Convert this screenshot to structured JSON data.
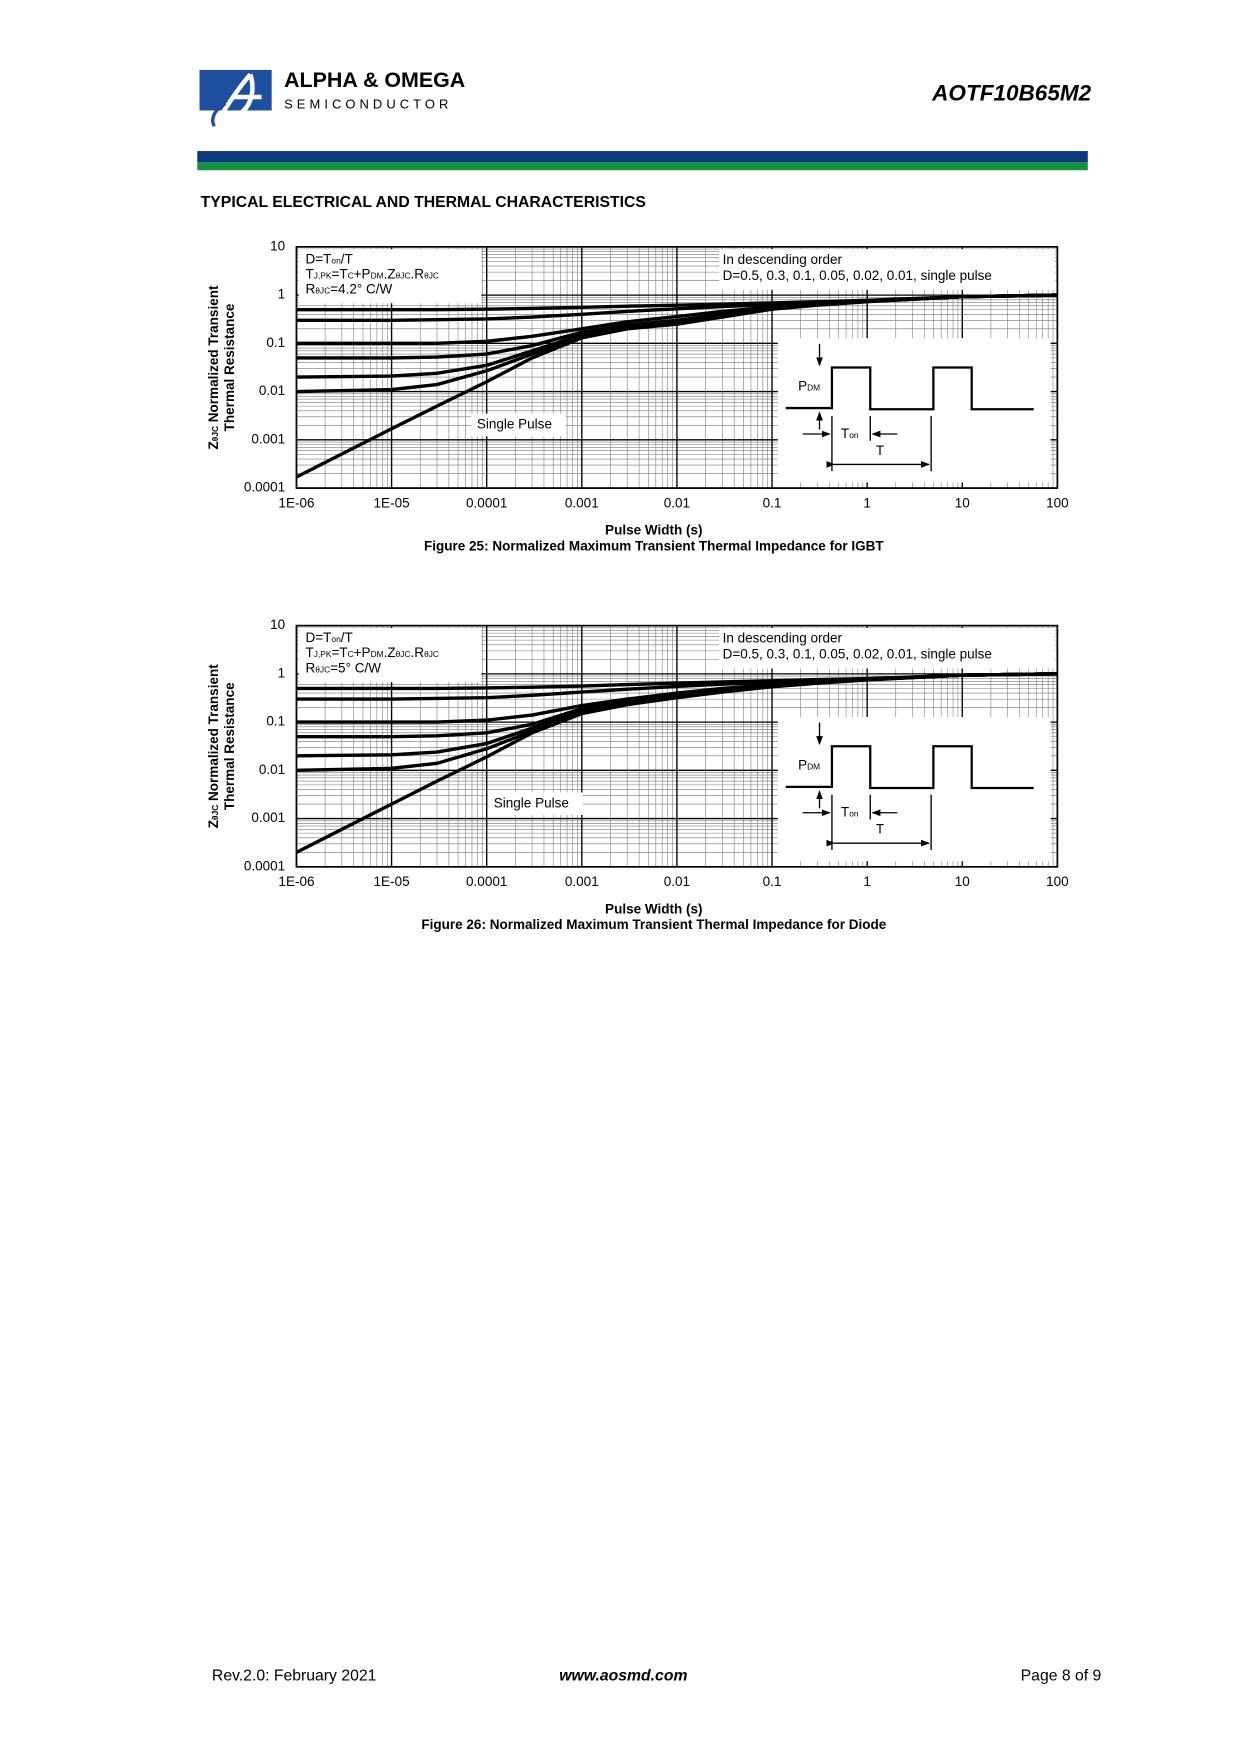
{
  "header": {
    "brand": "ALPHA & OMEGA",
    "brand_sub": "SEMICONDUCTOR",
    "part_number": "AOTF10B65M2"
  },
  "section_title": "TYPICAL ELECTRICAL AND THERMAL CHARACTERISTICS",
  "chart_data": [
    {
      "type": "line",
      "x_label": "Pulse Width (s)",
      "y_label": [
        [
          "Z",
          "θJC",
          " Normalized Transient"
        ],
        [
          "Thermal Resistance"
        ]
      ],
      "caption": "Figure 25: Normalized Maximum Transient Thermal Impedance for IGBT",
      "notes": [
        [
          "D=T",
          "on",
          "/T"
        ],
        [
          "T",
          "J,PK",
          "=T",
          "C",
          "+P",
          "DM",
          ".Z",
          "θJC",
          ".R",
          "θJC"
        ],
        [
          "R",
          "θJC",
          "=4.2°  C/W"
        ]
      ],
      "order_note": [
        "In descending order",
        "D=0.5, 0.3, 0.1, 0.05, 0.02, 0.01, single pulse"
      ],
      "single_pulse_label": "Single Pulse",
      "inset_labels": {
        "pdm": [
          "P",
          "DM"
        ],
        "ton": [
          "T",
          "on"
        ],
        "period": [
          "T"
        ]
      },
      "xscale": "log",
      "yscale": "log",
      "grid": true,
      "minor_grid": true,
      "xlim": [
        1e-06,
        100
      ],
      "ylim": [
        0.0001,
        10
      ],
      "xticks": [
        {
          "value": 1e-06,
          "label": "1E-06"
        },
        {
          "value": 1e-05,
          "label": "1E-05"
        },
        0.0001,
        0.001,
        0.01,
        0.1,
        1,
        10,
        100
      ],
      "yticks": [
        0.0001,
        0.001,
        0.01,
        0.1,
        1,
        10
      ],
      "x": [
        1e-06,
        1e-05,
        3e-05,
        0.0001,
        0.0003,
        0.001,
        0.003,
        0.01,
        0.03,
        0.1,
        0.3,
        1,
        10,
        100
      ],
      "series": [
        {
          "color": "#000000",
          "values": [
            0.5,
            0.5,
            0.5,
            0.51,
            0.53,
            0.56,
            0.59,
            0.62,
            0.65,
            0.69,
            0.73,
            0.78,
            0.93,
            1
          ]
        },
        {
          "color": "#000000",
          "values": [
            0.3,
            0.3,
            0.31,
            0.32,
            0.35,
            0.4,
            0.46,
            0.52,
            0.58,
            0.64,
            0.7,
            0.76,
            0.93,
            1
          ]
        },
        {
          "color": "#000000",
          "values": [
            0.1,
            0.1,
            0.1,
            0.11,
            0.14,
            0.2,
            0.28,
            0.36,
            0.46,
            0.57,
            0.66,
            0.75,
            0.93,
            1
          ]
        },
        {
          "color": "#000000",
          "values": [
            0.05,
            0.05,
            0.052,
            0.06,
            0.09,
            0.17,
            0.24,
            0.3,
            0.4,
            0.54,
            0.64,
            0.74,
            0.93,
            1
          ]
        },
        {
          "color": "#000000",
          "values": [
            0.02,
            0.021,
            0.024,
            0.035,
            0.07,
            0.15,
            0.22,
            0.27,
            0.37,
            0.53,
            0.63,
            0.74,
            0.93,
            1
          ]
        },
        {
          "color": "#000000",
          "values": [
            0.01,
            0.011,
            0.014,
            0.027,
            0.06,
            0.14,
            0.21,
            0.26,
            0.36,
            0.52,
            0.63,
            0.74,
            0.93,
            1
          ]
        },
        {
          "color": "#000000",
          "values": [
            0.00017,
            0.0017,
            0.005,
            0.016,
            0.05,
            0.13,
            0.2,
            0.25,
            0.35,
            0.51,
            0.62,
            0.73,
            0.93,
            1
          ]
        }
      ]
    },
    {
      "type": "line",
      "x_label": "Pulse Width (s)",
      "y_label": [
        [
          "Z",
          "θJC",
          " Normalized Transient"
        ],
        [
          "Thermal Resistance"
        ]
      ],
      "caption": "Figure 26: Normalized Maximum Transient Thermal Impedance for Diode",
      "notes": [
        [
          "D=T",
          "on",
          "/T"
        ],
        [
          "T",
          "J,PK",
          "=T",
          "C",
          "+P",
          "DM",
          ".Z",
          "θJC",
          ".R",
          "θJC"
        ],
        [
          "R",
          "θJC",
          "=5°  C/W"
        ]
      ],
      "order_note": [
        "In descending order",
        "D=0.5, 0.3, 0.1, 0.05, 0.02, 0.01, single pulse"
      ],
      "single_pulse_label": "Single Pulse",
      "inset_labels": {
        "pdm": [
          "P",
          "DM"
        ],
        "ton": [
          "T",
          "on"
        ],
        "period": [
          "T"
        ]
      },
      "xscale": "log",
      "yscale": "log",
      "grid": true,
      "minor_grid": true,
      "xlim": [
        1e-06,
        100
      ],
      "ylim": [
        0.0001,
        10
      ],
      "xticks": [
        {
          "value": 1e-06,
          "label": "1E-06"
        },
        {
          "value": 1e-05,
          "label": "1E-05"
        },
        0.0001,
        0.001,
        0.01,
        0.1,
        1,
        10,
        100
      ],
      "yticks": [
        0.0001,
        0.001,
        0.01,
        0.1,
        1,
        10
      ],
      "x": [
        1e-06,
        1e-05,
        3e-05,
        0.0001,
        0.0003,
        0.001,
        0.003,
        0.01,
        0.03,
        0.1,
        0.3,
        1,
        10,
        100
      ],
      "series": [
        {
          "color": "#000000",
          "values": [
            0.5,
            0.5,
            0.5,
            0.51,
            0.53,
            0.56,
            0.6,
            0.64,
            0.68,
            0.72,
            0.76,
            0.8,
            0.94,
            1
          ]
        },
        {
          "color": "#000000",
          "values": [
            0.3,
            0.3,
            0.31,
            0.32,
            0.36,
            0.42,
            0.48,
            0.55,
            0.61,
            0.67,
            0.73,
            0.78,
            0.94,
            1
          ]
        },
        {
          "color": "#000000",
          "values": [
            0.1,
            0.1,
            0.1,
            0.11,
            0.14,
            0.22,
            0.3,
            0.4,
            0.5,
            0.6,
            0.68,
            0.77,
            0.94,
            1
          ]
        },
        {
          "color": "#000000",
          "values": [
            0.05,
            0.05,
            0.052,
            0.06,
            0.09,
            0.19,
            0.27,
            0.36,
            0.46,
            0.57,
            0.66,
            0.76,
            0.94,
            1
          ]
        },
        {
          "color": "#000000",
          "values": [
            0.02,
            0.021,
            0.024,
            0.036,
            0.075,
            0.17,
            0.25,
            0.34,
            0.44,
            0.56,
            0.65,
            0.76,
            0.94,
            1
          ]
        },
        {
          "color": "#000000",
          "values": [
            0.01,
            0.011,
            0.014,
            0.028,
            0.065,
            0.16,
            0.24,
            0.33,
            0.43,
            0.55,
            0.65,
            0.76,
            0.94,
            1
          ]
        },
        {
          "color": "#000000",
          "values": [
            0.0002,
            0.002,
            0.006,
            0.019,
            0.06,
            0.15,
            0.23,
            0.32,
            0.42,
            0.54,
            0.64,
            0.75,
            0.94,
            1
          ]
        }
      ]
    }
  ],
  "footer": {
    "revision": "Rev.2.0: February 2021",
    "website": "www.aosmd.com",
    "page": "Page 8 of 9"
  }
}
